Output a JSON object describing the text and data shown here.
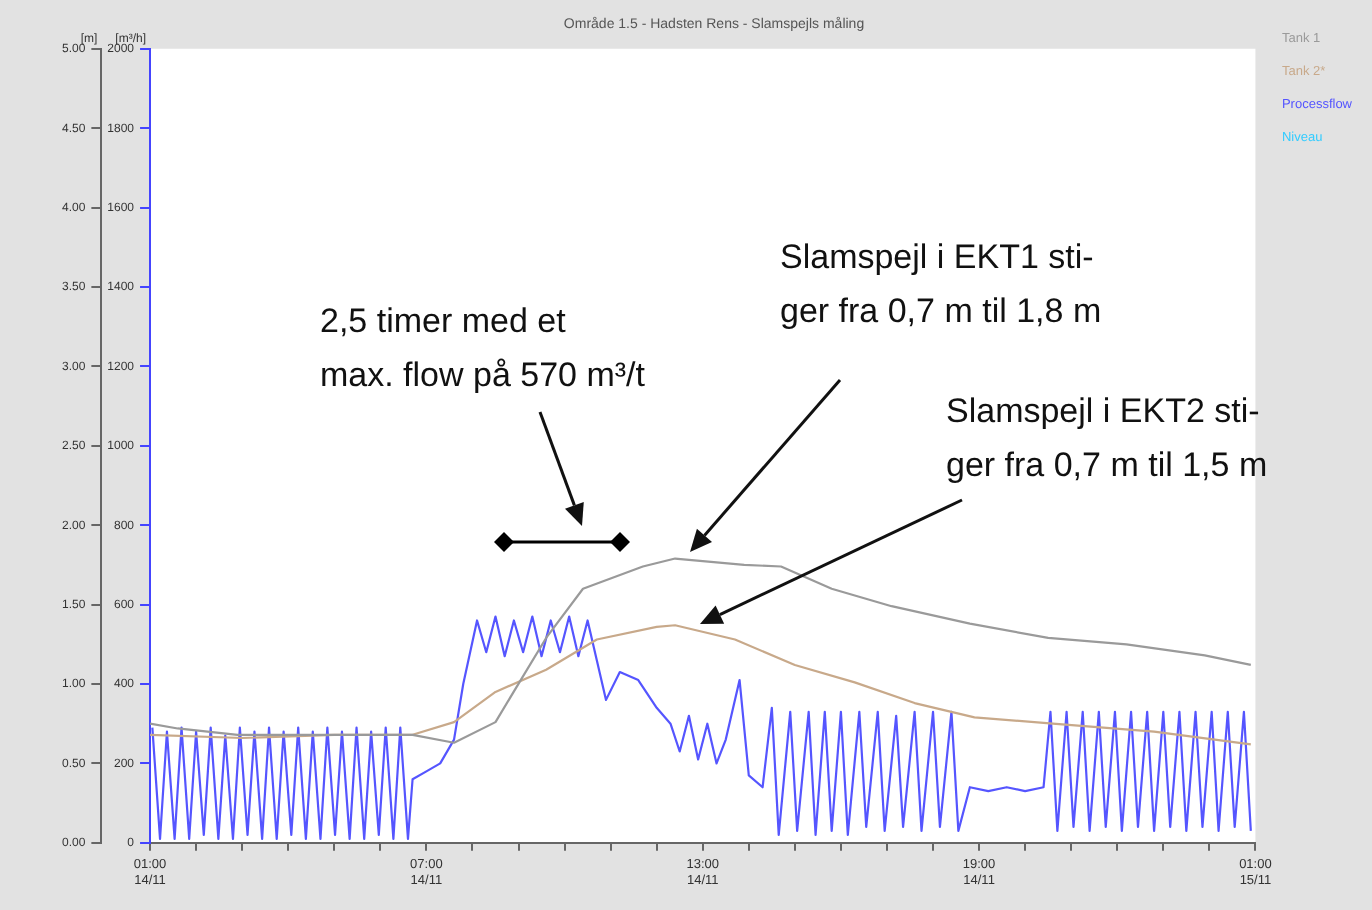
{
  "chart_data": {
    "type": "line",
    "title": "Område 1.5 - Hadsten Rens - Slamspejls måling",
    "ylabel": "[m]",
    "y2label": "[m³/h]",
    "xlim": [
      "--11-14T01:00",
      "--11-15T01:00"
    ],
    "xticks": [
      {
        "value": "--11-14T01:00",
        "label": "01:00\n14/11"
      },
      {
        "value": "--11-14T02:00",
        "label": null
      },
      {
        "value": "--11-14T03:00",
        "label": null
      },
      {
        "value": "--11-14T04:00",
        "label": null
      },
      {
        "value": "--11-14T05:00",
        "label": null
      },
      {
        "value": "--11-14T06:00",
        "label": null
      },
      {
        "value": "--11-14T07:00",
        "label": "07:00\n14/11"
      },
      {
        "value": "--11-14T08:00",
        "label": null
      },
      {
        "value": "--11-14T09:00",
        "label": null
      },
      {
        "value": "--11-14T10:00",
        "label": null
      },
      {
        "value": "--11-14T11:00",
        "label": null
      },
      {
        "value": "--11-14T12:00",
        "label": null
      },
      {
        "value": "--11-14T13:00",
        "label": "13:00\n14/11"
      },
      {
        "value": "--11-14T14:00",
        "label": null
      },
      {
        "value": "--11-14T15:00",
        "label": null
      },
      {
        "value": "--11-14T16:00",
        "label": null
      },
      {
        "value": "--11-14T17:00",
        "label": null
      },
      {
        "value": "--11-14T18:00",
        "label": null
      },
      {
        "value": "--11-14T19:00",
        "label": "19:00\n14/11"
      },
      {
        "value": "--11-14T20:00",
        "label": null
      },
      {
        "value": "--11-14T21:00",
        "label": null
      },
      {
        "value": "--11-14T22:00",
        "label": null
      },
      {
        "value": "--11-14T23:00",
        "label": null
      },
      {
        "value": "--11-15T00:00",
        "label": null
      },
      {
        "value": "--11-15T01:00",
        "label": "01:00\n15/11"
      }
    ],
    "ylim": [
      0,
      5
    ],
    "yticks": [
      {
        "value": 0,
        "label": "0.00"
      },
      {
        "value": 0.5,
        "label": "0.50"
      },
      {
        "value": 1,
        "label": "1.00"
      },
      {
        "value": 1.5,
        "label": "1.50"
      },
      {
        "value": 2,
        "label": "2.00"
      },
      {
        "value": 2.5,
        "label": "2.50"
      },
      {
        "value": 3,
        "label": "3.00"
      },
      {
        "value": 3.5,
        "label": "3.50"
      },
      {
        "value": 4,
        "label": "4.00"
      },
      {
        "value": 4.5,
        "label": "4.50"
      },
      {
        "value": 5,
        "label": "5.00"
      }
    ],
    "y2lim": [
      0,
      2000
    ],
    "y2ticks": [
      0,
      200,
      400,
      600,
      800,
      1000,
      1200,
      1400,
      1600,
      1800,
      2000
    ],
    "grid": false,
    "legend": "right",
    "marker": "none",
    "line_style": "solid",
    "series": [
      {
        "name": "Tank 1",
        "color": "#9a9a9a",
        "x": [
          "--11-14T01:00",
          "--11-14T01:36",
          "--11-14T02:54",
          "--11-14T05:06",
          "--11-14T06:42",
          "--11-14T07:36",
          "--11-14T08:30",
          "--11-14T09:06",
          "--11-14T09:36",
          "--11-14T10:24",
          "--11-14T11:42",
          "--11-14T12:24",
          "--11-14T13:54",
          "--11-14T14:42",
          "--11-14T15:48",
          "--11-14T17:06",
          "--11-14T18:48",
          "--11-14T20:30",
          "--11-14T22:12",
          "--11-14T23:54",
          "--11-15T00:54"
        ],
        "values": [
          0.75,
          0.72,
          0.68,
          0.68,
          0.68,
          0.63,
          0.76,
          1.05,
          1.29,
          1.6,
          1.74,
          1.79,
          1.75,
          1.74,
          1.6,
          1.49,
          1.38,
          1.29,
          1.25,
          1.18,
          1.12
        ]
      },
      {
        "name": "Tank 2*",
        "color": "#c8a98a",
        "x": [
          "--11-14T01:00",
          "--11-14T03:00",
          "--11-14T05:00",
          "--11-14T06:42",
          "--11-14T07:36",
          "--11-14T08:30",
          "--11-14T09:36",
          "--11-14T10:42",
          "--11-14T12:00",
          "--11-14T12:24",
          "--11-14T13:42",
          "--11-14T15:00",
          "--11-14T16:18",
          "--11-14T17:36",
          "--11-14T18:54",
          "--11-14T20:36",
          "--11-14T22:48",
          "--11-15T00:54"
        ],
        "values": [
          0.68,
          0.66,
          0.68,
          0.68,
          0.76,
          0.95,
          1.09,
          1.28,
          1.36,
          1.37,
          1.28,
          1.12,
          1.01,
          0.88,
          0.79,
          0.75,
          0.7,
          0.62
        ]
      },
      {
        "name": "Processflow",
        "color": "#5555ff",
        "axis": "y2",
        "x": [
          "--11-14T01:03",
          "--11-14T01:13",
          "--11-14T01:22",
          "--11-14T01:32",
          "--11-14T01:41",
          "--11-14T01:51",
          "--11-14T02:00",
          "--11-14T02:10",
          "--11-14T02:19",
          "--11-14T02:29",
          "--11-14T02:38",
          "--11-14T02:48",
          "--11-14T02:57",
          "--11-14T03:07",
          "--11-14T03:16",
          "--11-14T03:26",
          "--11-14T03:35",
          "--11-14T03:45",
          "--11-14T03:54",
          "--11-14T04:04",
          "--11-14T04:13",
          "--11-14T04:23",
          "--11-14T04:32",
          "--11-14T04:42",
          "--11-14T04:51",
          "--11-14T05:01",
          "--11-14T05:10",
          "--11-14T05:20",
          "--11-14T05:29",
          "--11-14T05:39",
          "--11-14T05:48",
          "--11-14T05:58",
          "--11-14T06:07",
          "--11-14T06:17",
          "--11-14T06:26",
          "--11-14T06:36",
          "--11-14T06:42",
          "--11-14T07:00",
          "--11-14T07:18",
          "--11-14T07:36",
          "--11-14T07:48",
          "--11-14T08:06",
          "--11-14T08:18",
          "--11-14T08:30",
          "--11-14T08:42",
          "--11-14T08:54",
          "--11-14T09:06",
          "--11-14T09:18",
          "--11-14T09:30",
          "--11-14T09:42",
          "--11-14T09:54",
          "--11-14T10:06",
          "--11-14T10:18",
          "--11-14T10:30",
          "--11-14T10:42",
          "--11-14T10:54",
          "--11-14T11:12",
          "--11-14T11:36",
          "--11-14T12:00",
          "--11-14T12:18",
          "--11-14T12:30",
          "--11-14T12:42",
          "--11-14T12:54",
          "--11-14T13:06",
          "--11-14T13:18",
          "--11-14T13:30",
          "--11-14T13:48",
          "--11-14T14:00",
          "--11-14T14:18",
          "--11-14T14:30",
          "--11-14T14:39",
          "--11-14T14:54",
          "--11-14T15:03",
          "--11-14T15:18",
          "--11-14T15:27",
          "--11-14T15:39",
          "--11-14T15:48",
          "--11-14T16:00",
          "--11-14T16:09",
          "--11-14T16:24",
          "--11-14T16:33",
          "--11-14T16:48",
          "--11-14T16:57",
          "--11-14T17:12",
          "--11-14T17:21",
          "--11-14T17:36",
          "--11-14T17:45",
          "--11-14T18:00",
          "--11-14T18:09",
          "--11-14T18:24",
          "--11-14T18:33",
          "--11-14T18:48",
          "--11-14T19:12",
          "--11-14T19:36",
          "--11-14T20:00",
          "--11-14T20:24",
          "--11-14T20:33",
          "--11-14T20:42",
          "--11-14T20:54",
          "--11-14T21:03",
          "--11-14T21:15",
          "--11-14T21:24",
          "--11-14T21:36",
          "--11-14T21:45",
          "--11-14T21:57",
          "--11-14T22:06",
          "--11-14T22:18",
          "--11-14T22:27",
          "--11-14T22:39",
          "--11-14T22:48",
          "--11-14T23:00",
          "--11-14T23:09",
          "--11-14T23:21",
          "--11-14T23:30",
          "--11-14T23:42",
          "--11-14T23:51",
          "--11-15T00:03",
          "--11-15T00:12",
          "--11-15T00:24",
          "--11-15T00:33",
          "--11-15T00:45",
          "--11-15T00:54"
        ],
        "values": [
          290,
          10,
          280,
          10,
          290,
          10,
          280,
          20,
          290,
          10,
          270,
          10,
          290,
          20,
          280,
          10,
          290,
          10,
          280,
          20,
          290,
          10,
          280,
          10,
          290,
          20,
          280,
          10,
          290,
          10,
          280,
          20,
          290,
          10,
          290,
          10,
          160,
          180,
          200,
          260,
          400,
          560,
          480,
          570,
          470,
          560,
          480,
          570,
          470,
          560,
          480,
          570,
          470,
          560,
          460,
          360,
          430,
          410,
          340,
          300,
          230,
          320,
          210,
          300,
          200,
          260,
          410,
          170,
          140,
          340,
          20,
          330,
          30,
          330,
          20,
          330,
          30,
          330,
          20,
          330,
          40,
          330,
          30,
          320,
          40,
          330,
          30,
          330,
          40,
          330,
          30,
          140,
          130,
          140,
          130,
          140,
          330,
          30,
          330,
          40,
          330,
          30,
          330,
          40,
          330,
          30,
          330,
          40,
          330,
          30,
          330,
          40,
          330,
          30,
          330,
          40,
          330,
          30,
          330,
          40,
          330,
          30
        ]
      },
      {
        "name": "Niveau",
        "color": "#33ccff"
      }
    ],
    "annotations": [
      "2,5 timer med et\nmax. flow på 570 m³/t",
      "Slamspejl i EKT1 sti-\nger fra 0,7 m til 1,8 m",
      "Slamspejl i EKT2 sti-\nger fra 0,7 m til 1,5 m"
    ]
  }
}
